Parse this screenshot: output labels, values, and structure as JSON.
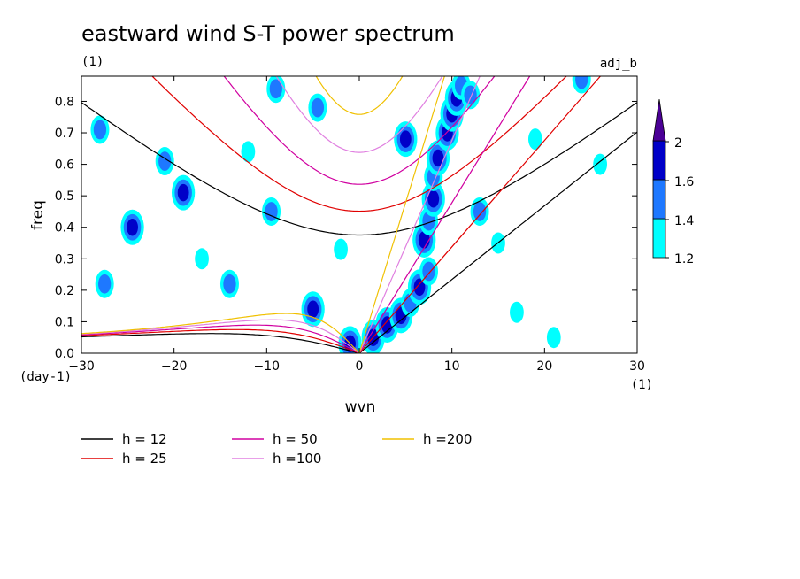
{
  "chart_data": {
    "type": "heatmap",
    "title": "eastward wind S-T power spectrum",
    "subtitle_left": "(1)",
    "subtitle_right": "adj_b",
    "xlabel": "wvn",
    "ylabel": "freq",
    "x_unit": "(1)",
    "y_unit": "(day-1)",
    "xlim": [
      -30,
      30
    ],
    "ylim": [
      0,
      0.88
    ],
    "x_ticks": [
      "-30",
      "-20",
      "-10",
      "0",
      "10",
      "20",
      "30"
    ],
    "y_ticks": [
      "0.0",
      "0.1",
      "0.2",
      "0.3",
      "0.4",
      "0.5",
      "0.6",
      "0.7",
      "0.8"
    ],
    "colorbar": {
      "levels": [
        "1.2",
        "1.4",
        "1.6",
        "2"
      ],
      "colors": [
        "#00ffff",
        "#1e78ff",
        "#0000c8",
        "#4b0096"
      ]
    },
    "dispersion_curves": [
      {
        "label": "h = 12",
        "h": 12,
        "color": "#000000"
      },
      {
        "label": "h = 25",
        "h": 25,
        "color": "#e00000"
      },
      {
        "label": "h = 50",
        "h": 50,
        "color": "#d000a0"
      },
      {
        "label": "h =100",
        "h": 100,
        "color": "#e080e0"
      },
      {
        "label": "h =200",
        "h": 200,
        "color": "#f0c000"
      }
    ],
    "power_blobs": [
      {
        "x": 1.5,
        "y": 0.05,
        "level": 3
      },
      {
        "x": 3.0,
        "y": 0.09,
        "level": 3
      },
      {
        "x": 4.5,
        "y": 0.12,
        "level": 3
      },
      {
        "x": 5.5,
        "y": 0.16,
        "level": 2
      },
      {
        "x": 6.5,
        "y": 0.21,
        "level": 3
      },
      {
        "x": 7.5,
        "y": 0.26,
        "level": 2
      },
      {
        "x": 7.0,
        "y": 0.36,
        "level": 3
      },
      {
        "x": 7.5,
        "y": 0.42,
        "level": 2
      },
      {
        "x": 8.0,
        "y": 0.49,
        "level": 3
      },
      {
        "x": 8.0,
        "y": 0.56,
        "level": 2
      },
      {
        "x": 8.5,
        "y": 0.62,
        "level": 3
      },
      {
        "x": 5.0,
        "y": 0.68,
        "level": 3
      },
      {
        "x": 9.5,
        "y": 0.7,
        "level": 3
      },
      {
        "x": 10.0,
        "y": 0.76,
        "level": 3
      },
      {
        "x": 10.5,
        "y": 0.81,
        "level": 3
      },
      {
        "x": 11.0,
        "y": 0.85,
        "level": 2
      },
      {
        "x": 12.0,
        "y": 0.82,
        "level": 2
      },
      {
        "x": 13.0,
        "y": 0.45,
        "level": 2
      },
      {
        "x": -1.0,
        "y": 0.03,
        "level": 3
      },
      {
        "x": -5.0,
        "y": 0.14,
        "level": 3
      },
      {
        "x": -14.0,
        "y": 0.22,
        "level": 2
      },
      {
        "x": -24.5,
        "y": 0.4,
        "level": 3
      },
      {
        "x": -19.0,
        "y": 0.51,
        "level": 3
      },
      {
        "x": -9.5,
        "y": 0.45,
        "level": 2
      },
      {
        "x": -21.0,
        "y": 0.61,
        "level": 2
      },
      {
        "x": -28.0,
        "y": 0.71,
        "level": 2
      },
      {
        "x": -27.5,
        "y": 0.22,
        "level": 2
      },
      {
        "x": -9.0,
        "y": 0.84,
        "level": 2
      },
      {
        "x": -4.5,
        "y": 0.78,
        "level": 2
      },
      {
        "x": -17.0,
        "y": 0.3,
        "level": 1
      },
      {
        "x": 17.0,
        "y": 0.13,
        "level": 1
      },
      {
        "x": 21.0,
        "y": 0.05,
        "level": 1
      },
      {
        "x": 26.0,
        "y": 0.6,
        "level": 1
      },
      {
        "x": 24.0,
        "y": 0.87,
        "level": 2
      },
      {
        "x": 19.0,
        "y": 0.68,
        "level": 1
      },
      {
        "x": -12.0,
        "y": 0.64,
        "level": 1
      },
      {
        "x": -2.0,
        "y": 0.33,
        "level": 1
      },
      {
        "x": 15.0,
        "y": 0.35,
        "level": 1
      }
    ]
  }
}
